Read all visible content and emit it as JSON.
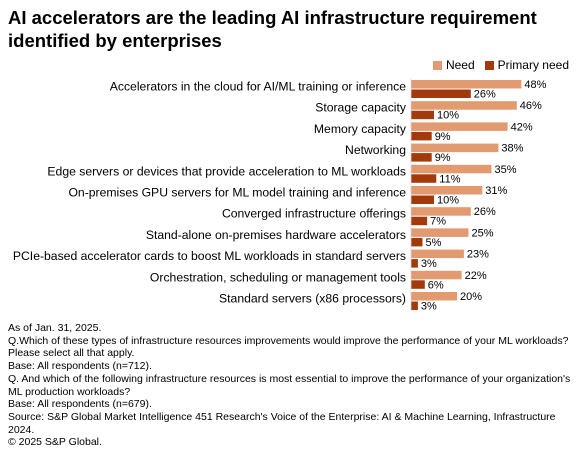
{
  "title": "AI accelerators are the leading AI infrastructure requirement identified by enterprises",
  "colors": {
    "need": "#e29a70",
    "primary": "#a33a0c"
  },
  "chart_data": {
    "type": "bar",
    "orientation": "horizontal",
    "categories": [
      "Accelerators in the cloud for AI/ML training or inference",
      "Storage capacity",
      "Memory capacity",
      "Networking",
      "Edge servers or devices that provide acceleration to ML workloads",
      "On-premises GPU servers for ML model training and inference",
      "Converged infrastructure offerings",
      "Stand-alone on-premises hardware accelerators",
      "PCIe-based accelerator cards to boost ML workloads in standard servers",
      "Orchestration, scheduling or management tools",
      "Standard servers (x86 processors)"
    ],
    "series": [
      {
        "name": "Need",
        "values": [
          48,
          46,
          42,
          38,
          35,
          31,
          26,
          25,
          23,
          22,
          20
        ]
      },
      {
        "name": "Primary need",
        "values": [
          26,
          10,
          9,
          9,
          11,
          10,
          7,
          5,
          3,
          6,
          3
        ]
      }
    ],
    "value_labels": {
      "need": [
        "48%",
        "46%",
        "42%",
        "38%",
        "35%",
        "31%",
        "26%",
        "25%",
        "23%",
        "22%",
        "20%"
      ],
      "primary": [
        "26%",
        "10%",
        "9%",
        "9%",
        "11%",
        "10%",
        "7%",
        "5%",
        "3%",
        "6%",
        "3%"
      ]
    },
    "legend_position": "top-right",
    "grid": false
  },
  "footnotes": [
    "As of Jan. 31, 2025.",
    "Q.Which of these types of infrastructure resources improvements would improve the performance of your ML workloads? Please select all that apply.",
    "Base: All respondents (n=712).",
    "Q. And which of the following infrastructure resources is most essential to improve the performance of your organization's ML production workloads?",
    "Base: All respondents (n=679).",
    "Source: S&P Global Market Intelligence 451 Research's Voice of the Enterprise: AI & Machine Learning, Infrastructure 2024.",
    "© 2025 S&P Global."
  ]
}
